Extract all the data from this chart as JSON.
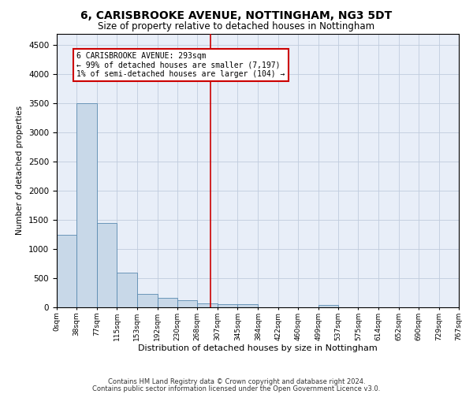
{
  "title": "6, CARISBROOKE AVENUE, NOTTINGHAM, NG3 5DT",
  "subtitle": "Size of property relative to detached houses in Nottingham",
  "xlabel": "Distribution of detached houses by size in Nottingham",
  "ylabel": "Number of detached properties",
  "bar_color": "#c8d8e8",
  "bar_edge_color": "#5a8ab0",
  "grid_color": "#c0ccdd",
  "bg_color": "#e8eef8",
  "annotation_box_color": "#cc0000",
  "vline_color": "#cc0000",
  "vline_x": 293,
  "annotation_lines": [
    "6 CARISBROOKE AVENUE: 293sqm",
    "← 99% of detached houses are smaller (7,197)",
    "1% of semi-detached houses are larger (104) →"
  ],
  "bin_edges": [
    0,
    38,
    77,
    115,
    153,
    192,
    230,
    268,
    307,
    345,
    384,
    422,
    460,
    499,
    537,
    575,
    614,
    652,
    690,
    729,
    767
  ],
  "bar_heights": [
    1250,
    3500,
    1450,
    600,
    230,
    160,
    120,
    70,
    60,
    50,
    0,
    0,
    0,
    45,
    0,
    0,
    0,
    0,
    0,
    0
  ],
  "ylim": [
    0,
    4700
  ],
  "yticks": [
    0,
    500,
    1000,
    1500,
    2000,
    2500,
    3000,
    3500,
    4000,
    4500
  ],
  "footer_line1": "Contains HM Land Registry data © Crown copyright and database right 2024.",
  "footer_line2": "Contains public sector information licensed under the Open Government Licence v3.0."
}
